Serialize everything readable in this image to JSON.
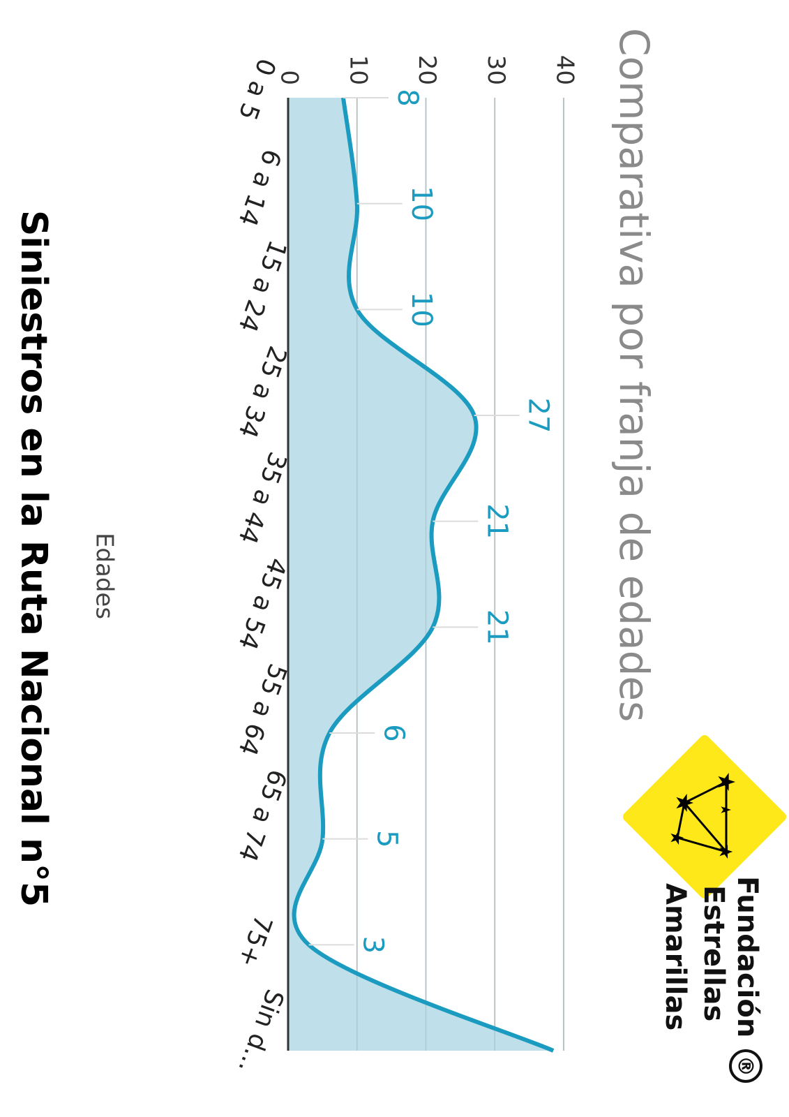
{
  "chart_data": {
    "type": "area",
    "title": "Siniestros en la Ruta Nacional n°5",
    "subtitle": "Comparativa por franja de edades",
    "x_label": "Edades",
    "categories": [
      "0 a 5",
      "6 a 14",
      "15 a 24",
      "25 a 34",
      "35 a 44",
      "45 a 54",
      "55 a 64",
      "65 a 74",
      "75+",
      "Sin d..."
    ],
    "values": [
      8,
      10,
      10,
      27,
      21,
      21,
      6,
      5,
      3,
      38.5
    ],
    "value_labels": [
      "8",
      "10",
      "10",
      "27",
      "21",
      "21",
      "6",
      "5",
      "3",
      null
    ],
    "color": "#1a9bbf",
    "fill": "#bfe0ea",
    "ylim": [
      0,
      40
    ],
    "yticks": [
      0,
      10,
      20,
      30,
      40
    ],
    "grid": true
  },
  "logo": {
    "lines": [
      "Fundación",
      "Estrellas",
      "Amarillas"
    ],
    "mark": "®"
  }
}
